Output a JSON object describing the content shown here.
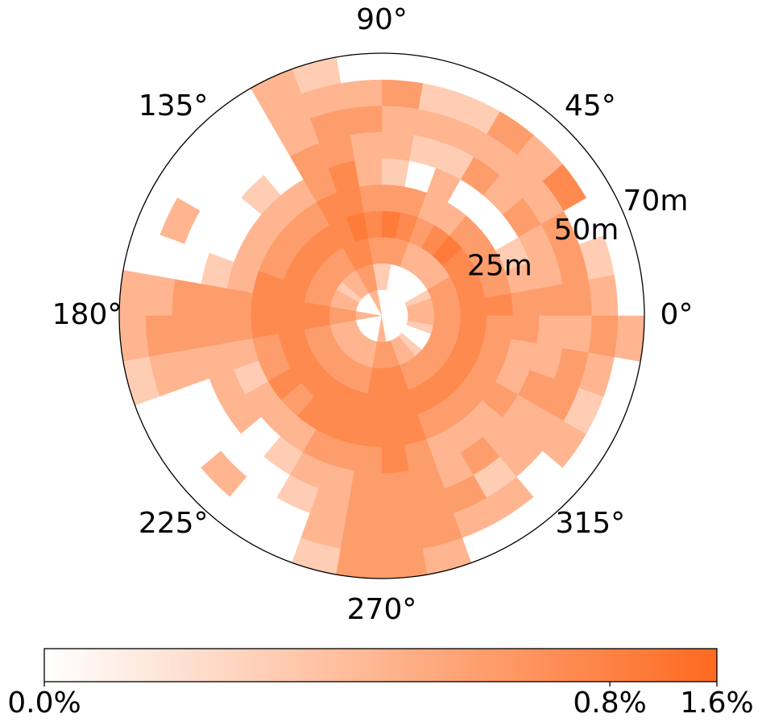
{
  "chart_data": {
    "type": "polar_heatmap",
    "theta_edges": [
      0,
      10,
      20,
      30,
      40,
      50,
      60,
      70,
      80,
      90,
      100,
      110,
      120,
      130,
      140,
      150,
      160,
      170,
      180,
      190,
      200,
      210,
      220,
      230,
      240,
      250,
      260,
      270,
      280,
      290,
      300,
      310,
      320,
      330,
      340,
      350,
      360
    ],
    "r_edges": [
      0,
      7,
      14,
      21,
      28,
      35,
      42,
      49,
      56,
      63,
      70
    ],
    "values": [
      [
        0,
        0.1,
        0.3,
        0.6,
        0.6,
        0.3,
        0.3,
        0.3,
        0.1,
        0
      ],
      [
        0,
        0.1,
        0.3,
        0.6,
        0.3,
        0.1,
        0.1,
        0.3,
        0.02,
        0
      ],
      [
        0,
        0.02,
        0.3,
        0.6,
        0.3,
        0.02,
        0.1,
        0.3,
        0,
        0
      ],
      [
        0,
        0,
        0.1,
        0.6,
        0.3,
        0,
        0.3,
        0.1,
        0.6,
        0
      ],
      [
        0,
        0,
        0.1,
        1,
        0.3,
        0,
        0.1,
        0.1,
        0.1,
        0
      ],
      [
        0,
        0,
        0.1,
        0.6,
        0.1,
        0,
        0.3,
        0.1,
        0.3,
        0
      ],
      [
        0,
        0,
        0.1,
        0.3,
        0.1,
        0.1,
        0.02,
        0.1,
        0.02,
        0
      ],
      [
        0,
        0,
        0.3,
        0.6,
        0.3,
        0,
        0.02,
        0.1,
        0.02,
        0
      ],
      [
        0,
        0.02,
        0.3,
        1,
        0.3,
        0.02,
        0.1,
        0.1,
        0.3,
        0
      ],
      [
        0,
        0.02,
        0.3,
        0.6,
        0.3,
        0.1,
        0.1,
        0.3,
        0.1,
        0
      ],
      [
        0.1,
        0.3,
        0.6,
        1,
        0.6,
        0.6,
        0.3,
        0.3,
        0.1,
        0.02
      ],
      [
        0.1,
        0.3,
        0.6,
        0.6,
        0.6,
        0.3,
        0.3,
        0.1,
        0.1,
        0.1
      ],
      [
        0,
        0.1,
        0.3,
        0.6,
        0.3,
        0.1,
        0,
        0,
        0,
        0
      ],
      [
        0,
        0.1,
        0.3,
        0.6,
        0.3,
        0.1,
        0.02,
        0,
        0,
        0
      ],
      [
        0,
        0.02,
        0.3,
        0.6,
        0.3,
        0.1,
        0,
        0,
        0,
        0
      ],
      [
        0,
        0.1,
        0.3,
        0.6,
        0.3,
        0.1,
        0,
        0,
        0.1,
        0
      ],
      [
        0,
        0.1,
        0.3,
        0.6,
        0.6,
        0.1,
        0.02,
        0,
        0,
        0
      ],
      [
        0.1,
        0.3,
        0.6,
        0.6,
        0.6,
        0.3,
        0.3,
        0.3,
        0.1,
        0.1
      ],
      [
        0.1,
        0.3,
        0.6,
        0.6,
        0.6,
        0.3,
        0.3,
        0.3,
        0.3,
        0.1
      ],
      [
        0,
        0.1,
        0.3,
        0.6,
        0.3,
        0.1,
        0.1,
        0.1,
        0.1,
        0.02
      ],
      [
        0,
        0.1,
        0.3,
        0.6,
        0.3,
        0.02,
        0.1,
        0,
        0,
        0
      ],
      [
        0,
        0.1,
        0.3,
        0.6,
        0.6,
        0.1,
        0.1,
        0,
        0,
        0
      ],
      [
        0,
        0.1,
        0.3,
        0.6,
        0.3,
        0.1,
        0,
        0,
        0.1,
        0
      ],
      [
        0,
        0.1,
        0.3,
        0.6,
        0.6,
        0.1,
        0.02,
        0,
        0,
        0
      ],
      [
        0,
        0.1,
        0.3,
        0.6,
        0.6,
        0.3,
        0.1,
        0.02,
        0,
        0
      ],
      [
        0,
        0.1,
        0.3,
        0.6,
        0.6,
        0.3,
        0.1,
        0.1,
        0.1,
        0.02
      ],
      [
        0.1,
        0.3,
        0.6,
        0.6,
        0.6,
        0.3,
        0.3,
        0.3,
        0.3,
        0.3
      ],
      [
        0.1,
        0.3,
        0.6,
        0.6,
        0.6,
        0.6,
        0.3,
        0.3,
        0.3,
        0.3
      ],
      [
        0,
        0.3,
        0.6,
        0.6,
        0.6,
        0.3,
        0.3,
        0.3,
        0.3,
        0.1
      ],
      [
        0,
        0.1,
        0.3,
        0.6,
        0.3,
        0.1,
        0.1,
        0.3,
        0.1,
        0
      ],
      [
        0,
        0.1,
        0.3,
        0.6,
        0.3,
        0.1,
        0.3,
        0.02,
        0.1,
        0
      ],
      [
        0,
        0.02,
        0.3,
        0.6,
        0.3,
        0.1,
        0.1,
        0.1,
        0,
        0
      ],
      [
        0,
        0,
        0.3,
        0.6,
        0.3,
        0.3,
        0.1,
        0.1,
        0.1,
        0
      ],
      [
        0,
        0,
        0.3,
        0.6,
        0.3,
        0.1,
        0.3,
        0.3,
        0.02,
        0
      ],
      [
        0,
        0.02,
        0.3,
        0.6,
        0.3,
        0.1,
        0.1,
        0.3,
        0.1,
        0
      ],
      [
        0,
        0.1,
        0.3,
        0.6,
        0.3,
        0.3,
        0.1,
        0.1,
        0.3,
        0.1
      ]
    ],
    "rlim": [
      0,
      70
    ],
    "rticks": [
      {
        "value": 25,
        "label": "25m"
      },
      {
        "value": 50,
        "label": "50m"
      },
      {
        "value": 70,
        "label": "70m"
      }
    ],
    "rlabel_angle": 22.5,
    "thetaticks": [
      {
        "value": 0,
        "label": "0°"
      },
      {
        "value": 45,
        "label": "45°"
      },
      {
        "value": 90,
        "label": "90°"
      },
      {
        "value": 135,
        "label": "135°"
      },
      {
        "value": 180,
        "label": "180°"
      },
      {
        "value": 225,
        "label": "225°"
      },
      {
        "value": 270,
        "label": "270°"
      },
      {
        "value": 315,
        "label": "315°"
      }
    ],
    "grid": false,
    "cmap": [
      "#ffffff",
      "#fe6a20"
    ],
    "color_norm": {
      "type": "power",
      "gamma": 0.25
    },
    "clim": [
      0,
      1.6
    ],
    "cticks": [
      {
        "value": 0,
        "label": "0.0%"
      },
      {
        "value": 0.8,
        "label": "0.8%"
      },
      {
        "value": 1.6,
        "label": "1.6%"
      }
    ]
  }
}
